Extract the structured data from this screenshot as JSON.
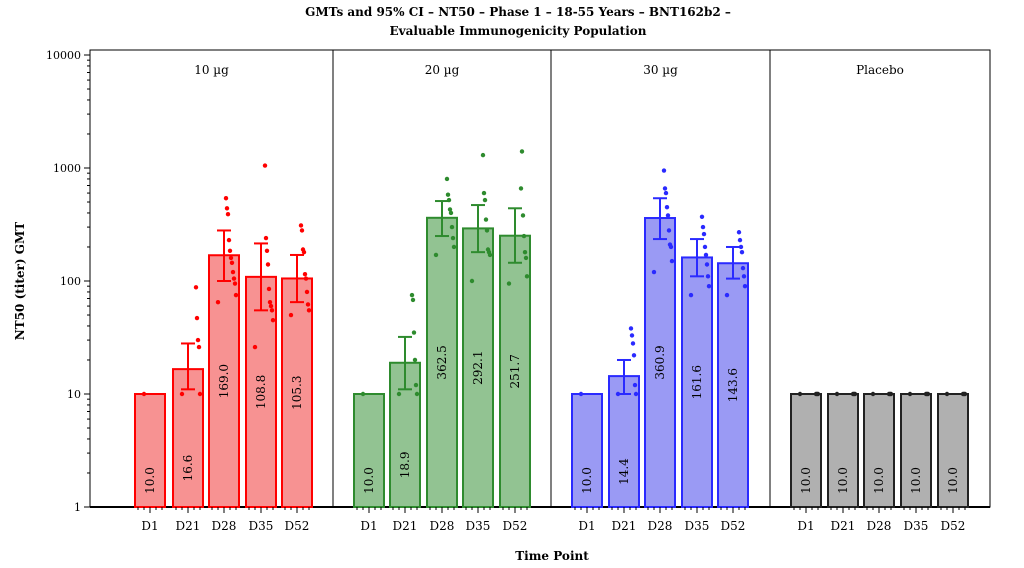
{
  "chart_data": {
    "type": "bar",
    "title": [
      "GMTs and 95% CI – NT50 – Phase 1 – 18-55 Years – BNT162b2 –",
      "Evaluable Immunogenicity Population"
    ],
    "xlabel": "Time Point",
    "ylabel": "NT50 (titer) GMT",
    "yscale": "log",
    "ylim": [
      1,
      10000
    ],
    "yticks": [
      "1",
      "10",
      "100",
      "1000",
      "10000"
    ],
    "categories": [
      "D1",
      "D21",
      "D28",
      "D35",
      "D52"
    ],
    "panels": [
      {
        "name": "10 µg",
        "color": "#ff0000",
        "fill": "#f79292",
        "values": [
          10.0,
          16.6,
          169.0,
          108.8,
          105.3
        ],
        "labels": [
          "10.0",
          "16.6",
          "169.0",
          "108.8",
          "105.3"
        ],
        "ci": [
          [
            10,
            10
          ],
          [
            11,
            28
          ],
          [
            100,
            280
          ],
          [
            55,
            215
          ],
          [
            65,
            170
          ]
        ],
        "points": [
          [
            10
          ],
          [
            10,
            10,
            26,
            30,
            47,
            88
          ],
          [
            65,
            75,
            95,
            105,
            120,
            145,
            160,
            185,
            230,
            390,
            440,
            540
          ],
          [
            26,
            45,
            55,
            60,
            65,
            85,
            140,
            185,
            240,
            1050
          ],
          [
            50,
            55,
            62,
            80,
            105,
            115,
            180,
            190,
            280,
            310
          ]
        ]
      },
      {
        "name": "20 µg",
        "color": "#2e8b2e",
        "fill": "#92c392",
        "values": [
          10.0,
          18.9,
          362.5,
          292.1,
          251.7
        ],
        "labels": [
          "10.0",
          "18.9",
          "362.5",
          "292.1",
          "251.7"
        ],
        "ci": [
          [
            10,
            10
          ],
          [
            11,
            32
          ],
          [
            250,
            510
          ],
          [
            180,
            470
          ],
          [
            145,
            440
          ]
        ],
        "points": [
          [
            10
          ],
          [
            10,
            10,
            12,
            20,
            35,
            68,
            75
          ],
          [
            170,
            200,
            240,
            300,
            400,
            430,
            520,
            580,
            800
          ],
          [
            100,
            170,
            180,
            190,
            280,
            350,
            520,
            600,
            1300
          ],
          [
            95,
            110,
            160,
            180,
            250,
            380,
            1400,
            660
          ]
        ]
      },
      {
        "name": "30 µg",
        "color": "#2a2aff",
        "fill": "#9a9af4",
        "values": [
          10.0,
          14.4,
          360.9,
          161.6,
          143.6
        ],
        "labels": [
          "10.0",
          "14.4",
          "360.9",
          "161.6",
          "143.6"
        ],
        "ci": [
          [
            10,
            10
          ],
          [
            10,
            20
          ],
          [
            235,
            540
          ],
          [
            110,
            235
          ],
          [
            105,
            200
          ]
        ],
        "points": [
          [
            10
          ],
          [
            10,
            10,
            12,
            22,
            28,
            33,
            38
          ],
          [
            120,
            150,
            200,
            210,
            280,
            380,
            450,
            600,
            660,
            950
          ],
          [
            75,
            90,
            110,
            140,
            170,
            200,
            260,
            300,
            370
          ],
          [
            75,
            90,
            110,
            130,
            180,
            200,
            230,
            270
          ]
        ]
      },
      {
        "name": "Placebo",
        "color": "#222222",
        "fill": "#b0b0b0",
        "values": [
          10.0,
          10.0,
          10.0,
          10.0,
          10.0
        ],
        "labels": [
          "10.0",
          "10.0",
          "10.0",
          "10.0",
          "10.0"
        ],
        "ci": [
          [
            10,
            10
          ],
          [
            10,
            10
          ],
          [
            10,
            10
          ],
          [
            10,
            10
          ],
          [
            10,
            10
          ]
        ],
        "points": [
          [
            10,
            10,
            10,
            10
          ],
          [
            10,
            10,
            10,
            10
          ],
          [
            10,
            10,
            10,
            10
          ],
          [
            10,
            10,
            10,
            10
          ],
          [
            10,
            10,
            10,
            10
          ]
        ]
      }
    ],
    "grid": false,
    "legend": "none"
  }
}
